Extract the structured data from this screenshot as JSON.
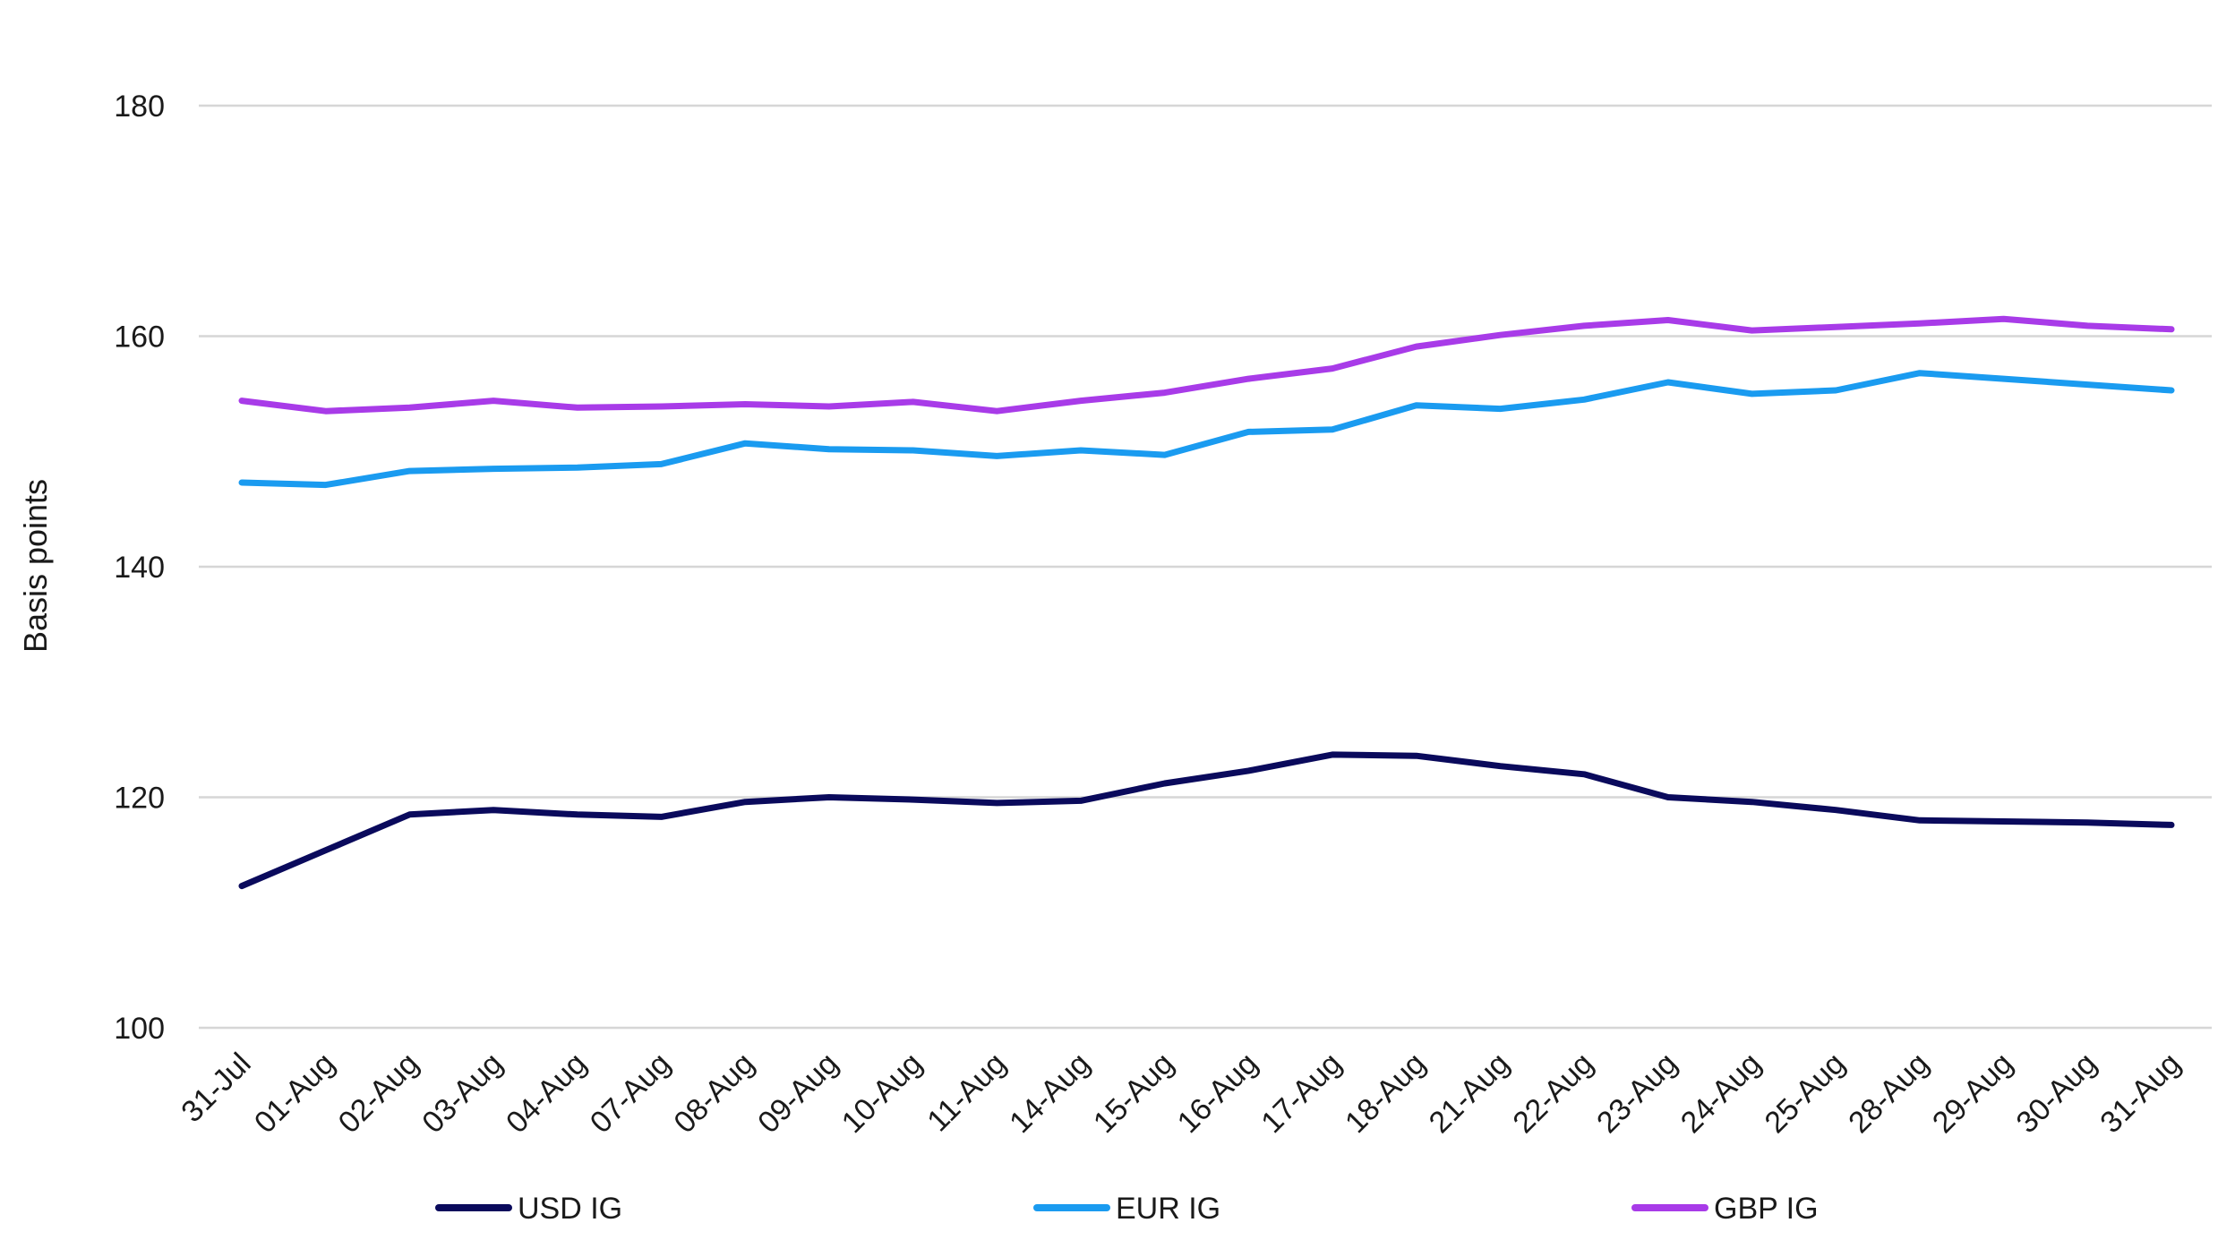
{
  "chart_data": {
    "type": "line",
    "title": "",
    "xlabel": "",
    "ylabel": "Basis points",
    "ylim": [
      100,
      180
    ],
    "yticks": [
      100,
      120,
      140,
      160,
      180
    ],
    "grid": true,
    "legend_position": "bottom",
    "categories": [
      "31-Jul",
      "01-Aug",
      "02-Aug",
      "03-Aug",
      "04-Aug",
      "07-Aug",
      "08-Aug",
      "09-Aug",
      "10-Aug",
      "11-Aug",
      "14-Aug",
      "15-Aug",
      "16-Aug",
      "17-Aug",
      "18-Aug",
      "21-Aug",
      "22-Aug",
      "23-Aug",
      "24-Aug",
      "25-Aug",
      "28-Aug",
      "29-Aug",
      "30-Aug",
      "31-Aug"
    ],
    "series": [
      {
        "name": "USD IG",
        "color": "#0a0a5c",
        "values": [
          112.3,
          115.4,
          118.5,
          118.9,
          118.5,
          118.3,
          119.6,
          120.0,
          119.8,
          119.5,
          119.7,
          121.2,
          122.3,
          123.7,
          123.6,
          122.7,
          122.0,
          120.0,
          119.6,
          118.9,
          118.0,
          117.9,
          117.8,
          117.6
        ]
      },
      {
        "name": "EUR IG",
        "color": "#1a9bf0",
        "values": [
          147.3,
          147.1,
          148.3,
          148.5,
          148.6,
          148.9,
          150.7,
          150.2,
          150.1,
          149.6,
          150.1,
          149.7,
          151.7,
          151.9,
          154.0,
          153.7,
          154.5,
          156.0,
          155.0,
          155.3,
          156.8,
          156.3,
          155.8,
          155.3
        ]
      },
      {
        "name": "GBP IG",
        "color": "#a83be8",
        "values": [
          154.4,
          153.5,
          153.8,
          154.4,
          153.8,
          153.9,
          154.1,
          153.9,
          154.3,
          153.5,
          154.4,
          155.1,
          156.3,
          157.2,
          159.1,
          160.1,
          160.9,
          161.4,
          160.5,
          160.8,
          161.1,
          161.5,
          160.9,
          160.6
        ]
      }
    ]
  }
}
